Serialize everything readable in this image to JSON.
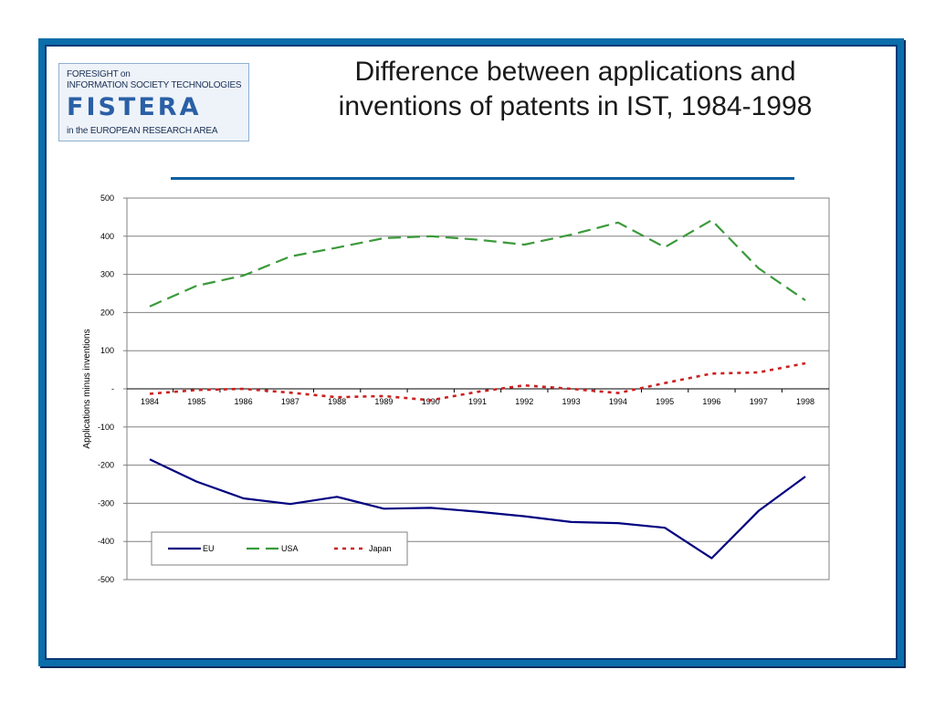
{
  "logo": {
    "line1": "FORESIGHT on",
    "line2": "INFORMATION SOCIETY TECHNOLOGIES",
    "wordmark": "FISTERA",
    "line3": "in the EUROPEAN RESEARCH AREA"
  },
  "title": {
    "line1": "Difference between applications and",
    "line2": "inventions of patents in IST, 1984-1998"
  },
  "colors": {
    "frame": "#0a6eaa",
    "rule": "#0a5fa0",
    "eu": "#000080",
    "usa": "#3a9a3a",
    "japan": "#cc2020"
  },
  "chart_data": {
    "type": "line",
    "ylabel": "Applications minus inventions",
    "xlabel": "",
    "ylim": [
      -500,
      500
    ],
    "y_ticks": [
      500,
      400,
      300,
      200,
      100,
      0,
      -100,
      -200,
      -300,
      -400,
      -500
    ],
    "y_tick_labels": [
      "500",
      "400",
      "300",
      "200",
      "100",
      "-",
      "-100",
      "-200",
      "-300",
      "-400",
      "-500"
    ],
    "grid": true,
    "legend_position": "bottom-left",
    "categories": [
      "1984",
      "1985",
      "1986",
      "1987",
      "1988",
      "1989",
      "1990",
      "1991",
      "1992",
      "1993",
      "1994",
      "1995",
      "1996",
      "1997",
      "1998"
    ],
    "series": [
      {
        "name": "EU",
        "style": "solid",
        "values": [
          -185,
          -243,
          -287,
          -302,
          -283,
          -314,
          -312,
          -322,
          -334,
          -349,
          -352,
          -364,
          -444,
          -320,
          -230
        ]
      },
      {
        "name": "USA",
        "style": "dashed",
        "values": [
          216,
          270,
          297,
          347,
          370,
          395,
          400,
          391,
          378,
          404,
          436,
          371,
          442,
          316,
          232
        ]
      },
      {
        "name": "Japan",
        "style": "dotted",
        "values": [
          -13,
          -3,
          0,
          -10,
          -22,
          -19,
          -30,
          -8,
          9,
          0,
          -11,
          15,
          40,
          43,
          67
        ]
      }
    ]
  }
}
